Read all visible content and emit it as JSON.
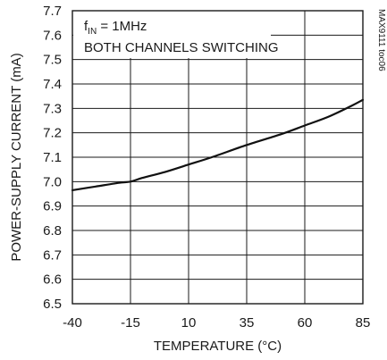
{
  "chart_data": {
    "type": "line",
    "title": "",
    "xlabel": "TEMPERATURE (°C)",
    "ylabel": "POWER-SUPPLY CURRENT (mA)",
    "xlim": [
      -40,
      85
    ],
    "ylim": [
      6.5,
      7.7
    ],
    "x_ticks": [
      "-40",
      "-15",
      "10",
      "35",
      "60",
      "85"
    ],
    "y_ticks": [
      "6.5",
      "6.6",
      "6.7",
      "6.8",
      "6.9",
      "7.0",
      "7.1",
      "7.2",
      "7.3",
      "7.4",
      "7.5",
      "7.6",
      "7.7"
    ],
    "grid": true,
    "annotations": {
      "fin_main": "f",
      "fin_sub": "IN",
      "fin_value": " = 1MHz",
      "mode": "BOTH CHANNELS SWITCHING",
      "figure_id": "MAX9111 toc06"
    },
    "series": [
      {
        "x": [
          -40,
          -30,
          -20,
          -15,
          -10,
          0,
          10,
          20,
          35,
          50,
          60,
          70,
          80,
          85
        ],
        "y": [
          6.965,
          6.98,
          6.995,
          7.0,
          7.015,
          7.04,
          7.07,
          7.1,
          7.15,
          7.195,
          7.23,
          7.265,
          7.31,
          7.335
        ]
      }
    ]
  }
}
